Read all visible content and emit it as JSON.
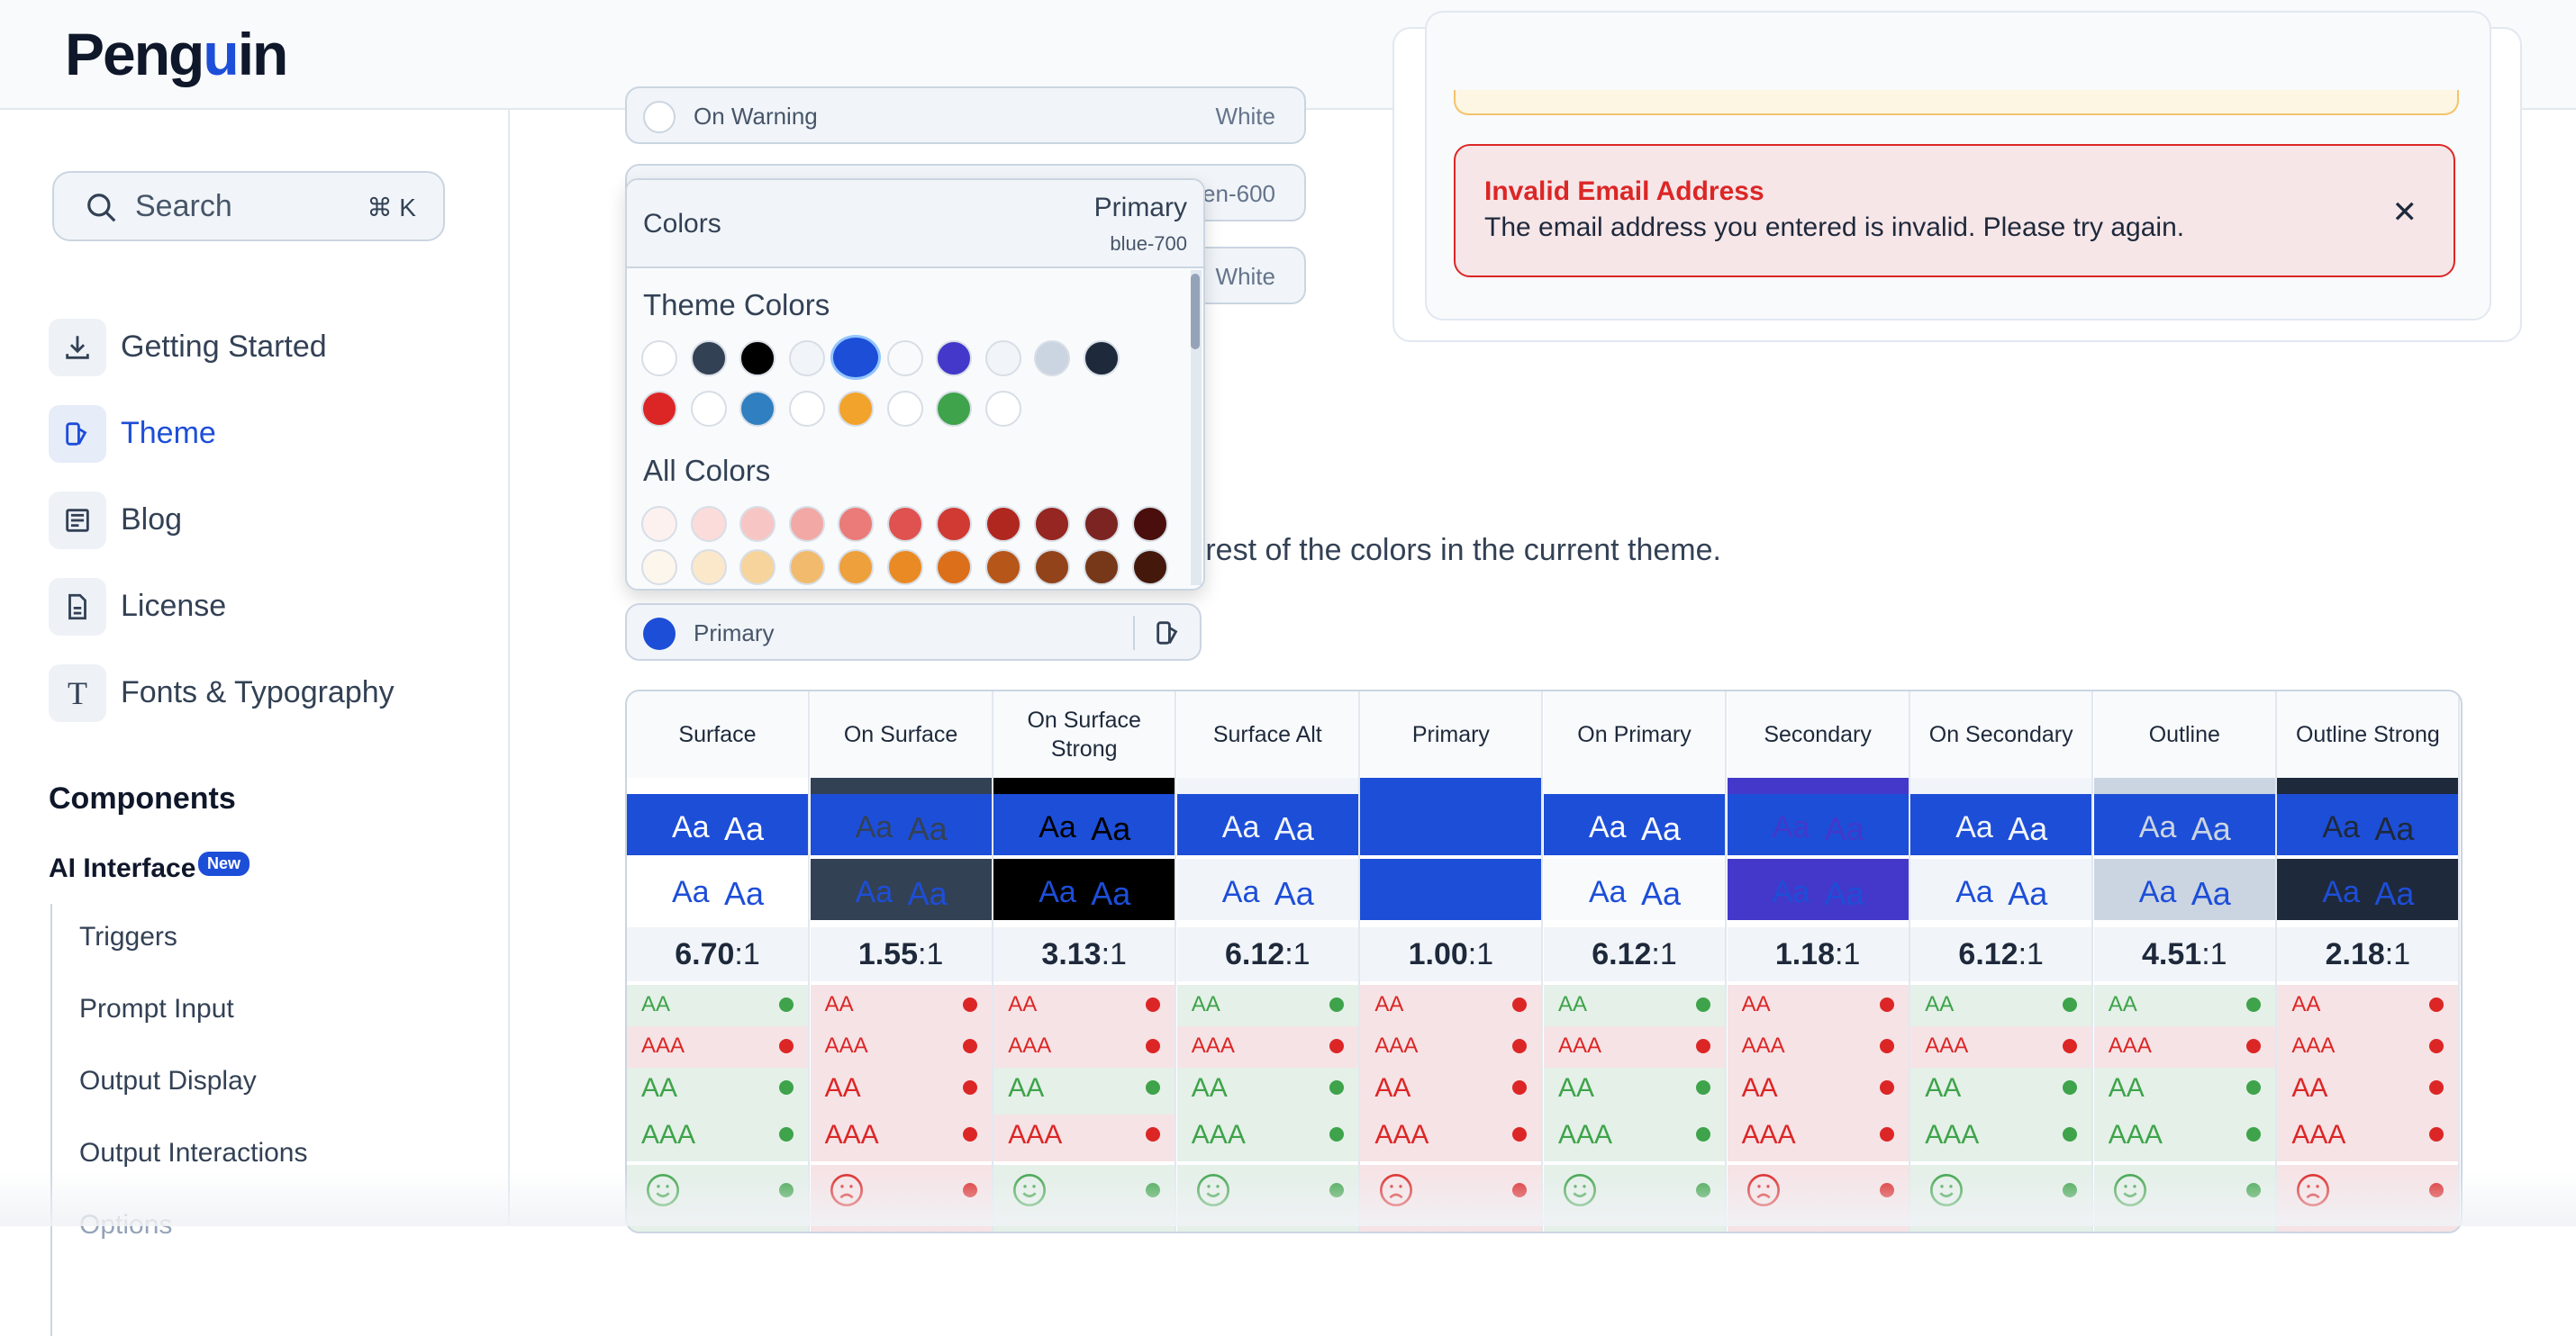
{
  "header": {
    "logo_text_a": "Peng",
    "logo_text_b": "u",
    "logo_text_c": "in"
  },
  "sidebar": {
    "search_label": "Search",
    "search_shortcut": "⌘ K",
    "items": [
      {
        "label": "Getting Started",
        "icon": "download-icon"
      },
      {
        "label": "Theme",
        "icon": "palette-icon"
      },
      {
        "label": "Blog",
        "icon": "newspaper-icon"
      },
      {
        "label": "License",
        "icon": "document-icon"
      },
      {
        "label": "Fonts & Typography",
        "icon": "type-icon"
      }
    ],
    "section_title": "Components",
    "ai_title": "AI Interface",
    "ai_badge": "New",
    "sub_items": [
      "Triggers",
      "Prompt Input",
      "Output Display",
      "Output Interactions",
      "Options"
    ]
  },
  "panel_rows": [
    {
      "label": "On Warning",
      "value": "White"
    },
    {
      "label": "",
      "value": "en-600"
    },
    {
      "label": "",
      "value": "White"
    }
  ],
  "alert": {
    "title": "Invalid Email Address",
    "message": "The email address you entered is invalid. Please try again.",
    "close": "✕"
  },
  "description_text": "e rest of the colors in the current theme.",
  "dropdown": {
    "label": "Colors",
    "selected_name": "Primary",
    "selected_value": "blue-700",
    "theme_title": "Theme Colors",
    "all_title": "All Colors",
    "theme_colors_row1": [
      "#ffffff",
      "#334155",
      "#000000",
      "#f1f5f9",
      "#1d4ed8",
      "#f8fafc",
      "#4338ca",
      "#f1f5f9",
      "#cbd5e1",
      "#1e293b"
    ],
    "theme_colors_row2": [
      "#dc2626",
      "#ffffff",
      "#2f7fc1",
      "#ffffff",
      "#f2a32b",
      "#ffffff",
      "#3ea34a",
      "#ffffff"
    ],
    "all_colors_row1": [
      "#fdf1ef",
      "#fbdcdb",
      "#f7c6c4",
      "#f2a9a5",
      "#ea7b78",
      "#e05250",
      "#d03a32",
      "#b0271f",
      "#952621",
      "#7c2422",
      "#4a0f0c"
    ],
    "all_colors_row2": [
      "#fdf6ec",
      "#fbe8cb",
      "#f6d49b",
      "#f2ba6c",
      "#eea03c",
      "#ea8a24",
      "#dc6f1a",
      "#b65618",
      "#93431a",
      "#773819",
      "#44190b"
    ]
  },
  "primary_input": {
    "label": "Primary",
    "color": "#1d4ed8"
  },
  "table": {
    "columns": [
      {
        "name": "Surface",
        "strip": "#ffffff",
        "bg1": "#1d4ed8",
        "fg1": "#ffffff",
        "bg2": "#ffffff",
        "fg2": "#1d4ed8",
        "ratio": "6.70",
        "pass": [
          true,
          false,
          true,
          true
        ],
        "happy": true
      },
      {
        "name": "On Surface",
        "strip": "#334155",
        "bg1": "#1d4ed8",
        "fg1": "#334155",
        "bg2": "#334155",
        "fg2": "#1d4ed8",
        "ratio": "1.55",
        "pass": [
          false,
          false,
          false,
          false
        ],
        "happy": false
      },
      {
        "name": "On Surface Strong",
        "strip": "#000000",
        "bg1": "#1d4ed8",
        "fg1": "#000000",
        "bg2": "#000000",
        "fg2": "#1d4ed8",
        "ratio": "3.13",
        "pass": [
          false,
          false,
          true,
          false
        ],
        "happy": true
      },
      {
        "name": "Surface Alt",
        "strip": "#f1f5f9",
        "bg1": "#1d4ed8",
        "fg1": "#f1f5f9",
        "bg2": "#f1f5f9",
        "fg2": "#1d4ed8",
        "ratio": "6.12",
        "pass": [
          true,
          false,
          true,
          true
        ],
        "happy": true
      },
      {
        "name": "Primary",
        "strip": "#1d4ed8",
        "bg1": "#1d4ed8",
        "fg1": "#1d4ed8",
        "bg2": "#1d4ed8",
        "fg2": "#1d4ed8",
        "ratio": "1.00",
        "pass": [
          false,
          false,
          false,
          false
        ],
        "happy": false
      },
      {
        "name": "On Primary",
        "strip": "#f8fafc",
        "bg1": "#1d4ed8",
        "fg1": "#f8fafc",
        "bg2": "#f8fafc",
        "fg2": "#1d4ed8",
        "ratio": "6.12",
        "pass": [
          true,
          false,
          true,
          true
        ],
        "happy": true
      },
      {
        "name": "Secondary",
        "strip": "#4338ca",
        "bg1": "#1d4ed8",
        "fg1": "#4338ca",
        "bg2": "#4338ca",
        "fg2": "#1d4ed8",
        "ratio": "1.18",
        "pass": [
          false,
          false,
          false,
          false
        ],
        "happy": false
      },
      {
        "name": "On Secondary",
        "strip": "#f1f5f9",
        "bg1": "#1d4ed8",
        "fg1": "#f1f5f9",
        "bg2": "#f1f5f9",
        "fg2": "#1d4ed8",
        "ratio": "6.12",
        "pass": [
          true,
          false,
          true,
          true
        ],
        "happy": true
      },
      {
        "name": "Outline",
        "strip": "#cbd5e1",
        "bg1": "#1d4ed8",
        "fg1": "#cbd5e1",
        "bg2": "#cbd5e1",
        "fg2": "#1d4ed8",
        "ratio": "4.51",
        "pass": [
          true,
          false,
          true,
          true
        ],
        "happy": true
      },
      {
        "name": "Outline Strong",
        "strip": "#1e293b",
        "bg1": "#1d4ed8",
        "fg1": "#1e293b",
        "bg2": "#1e293b",
        "fg2": "#1d4ed8",
        "ratio": "2.18",
        "pass": [
          false,
          false,
          false,
          false
        ],
        "happy": false
      }
    ],
    "ratio_suffix": ":1",
    "sample_text": "Aa",
    "labels": [
      "AA",
      "AAA",
      "AA",
      "AAA"
    ],
    "colors": {
      "pass_fg": "#3ea34a",
      "pass_bg": "#e4f0e8",
      "fail_fg": "#dc2626",
      "fail_bg": "#f6e3e6"
    }
  }
}
